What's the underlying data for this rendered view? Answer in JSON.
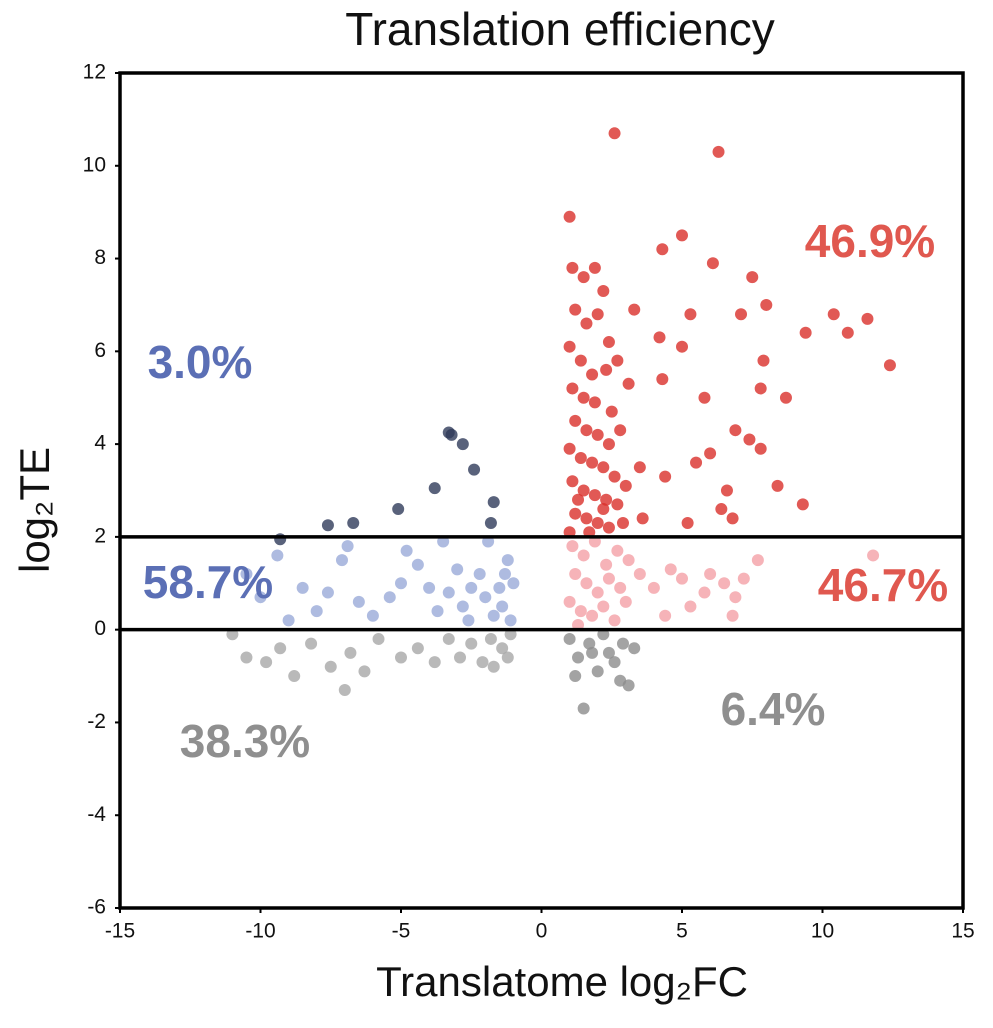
{
  "chart_data": {
    "type": "scatter",
    "title": "Translation efficiency",
    "x_label": "Translatome log₂FC",
    "y_label": "log₂TE",
    "xlim": [
      -15,
      15
    ],
    "ylim": [
      -6,
      12
    ],
    "xticks": [
      -15,
      -10,
      -5,
      0,
      5,
      10,
      15
    ],
    "yticks": [
      -6,
      -4,
      -2,
      0,
      2,
      4,
      6,
      8,
      10,
      12
    ],
    "grid": false,
    "reference_lines": [
      2,
      0
    ],
    "annotations": [
      {
        "text": "46.9%",
        "color": "#e0584f"
      },
      {
        "text": "3.0%",
        "color": "#5b6fb5"
      },
      {
        "text": "58.7%",
        "color": "#5b6fb5"
      },
      {
        "text": "46.7%",
        "color": "#e0584f"
      },
      {
        "text": "38.3%",
        "color": "#8f8f8f"
      },
      {
        "text": "6.4%",
        "color": "#8f8f8f"
      }
    ],
    "series": [
      {
        "color": "#a8a8a8",
        "x": [
          -1.1,
          -1.4,
          -1.8,
          -2.1,
          -2.5,
          -2.9,
          -3.3,
          -3.8,
          -4.4,
          -5.0,
          -5.8,
          -6.3,
          -6.8,
          -7.0,
          -7.5,
          -8.2,
          -8.8,
          -9.3,
          -9.8,
          -10.5,
          -11.0,
          -1.7,
          -1.2
        ],
        "y": [
          -0.1,
          -0.4,
          -0.2,
          -0.7,
          -0.3,
          -0.6,
          -0.2,
          -0.7,
          -0.4,
          -0.6,
          -0.2,
          -0.9,
          -0.5,
          -1.3,
          -0.8,
          -0.3,
          -1.0,
          -0.4,
          -0.7,
          -0.6,
          -0.1,
          -0.8,
          -0.6
        ]
      },
      {
        "color": "#8c8c8c",
        "x": [
          1.0,
          1.3,
          1.7,
          2.0,
          2.4,
          2.8,
          3.1,
          1.2,
          1.5,
          2.2,
          2.6,
          3.3,
          1.8,
          2.9
        ],
        "y": [
          -0.2,
          -0.6,
          -0.3,
          -0.9,
          -0.5,
          -1.1,
          -1.2,
          -1.0,
          -1.7,
          -0.1,
          -0.7,
          -0.4,
          -0.5,
          -0.3
        ]
      },
      {
        "color": "#9aaad8",
        "x": [
          -1.2,
          -1.3,
          -1.5,
          -1.4,
          -1.7,
          -2.0,
          -2.2,
          -2.5,
          -2.8,
          -3.0,
          -3.3,
          -3.7,
          -4.0,
          -4.4,
          -5.0,
          -5.4,
          -6.0,
          -6.5,
          -7.1,
          -7.6,
          -8.0,
          -8.5,
          -9.0,
          -9.4,
          -10.0,
          -10.5,
          -6.9,
          -4.8,
          -1.1,
          -1.9,
          -3.5,
          -2.6,
          -1.0
        ],
        "y": [
          1.5,
          1.2,
          0.9,
          0.5,
          0.3,
          0.7,
          1.2,
          0.9,
          0.5,
          1.3,
          0.8,
          0.4,
          0.9,
          1.4,
          1.0,
          0.7,
          0.3,
          0.6,
          1.5,
          0.8,
          0.4,
          0.9,
          0.2,
          1.6,
          0.7,
          1.2,
          1.8,
          1.7,
          0.2,
          1.9,
          1.9,
          0.2,
          1.0
        ]
      },
      {
        "color": "#f4a0a6",
        "x": [
          1.1,
          1.5,
          1.9,
          2.3,
          2.7,
          3.1,
          3.5,
          1.2,
          1.6,
          2.0,
          2.4,
          2.8,
          1.0,
          1.4,
          1.8,
          2.2,
          2.6,
          3.0,
          1.3,
          4.0,
          4.6,
          5.0,
          5.8,
          6.0,
          6.5,
          6.9,
          7.2,
          7.7,
          11.8,
          5.3,
          6.8,
          4.4
        ],
        "y": [
          1.8,
          1.6,
          1.9,
          1.4,
          1.7,
          1.5,
          1.2,
          1.2,
          1.0,
          0.8,
          1.1,
          0.9,
          0.6,
          0.4,
          0.3,
          0.5,
          0.2,
          0.6,
          0.1,
          0.9,
          1.3,
          1.1,
          0.8,
          1.2,
          1.0,
          0.7,
          1.1,
          1.5,
          1.6,
          0.5,
          0.3,
          0.3
        ]
      },
      {
        "color": "#2f3b5a",
        "x": [
          -9.3,
          -7.6,
          -6.7,
          -5.1,
          -3.8,
          -3.3,
          -3.2,
          -2.8,
          -2.4,
          -1.7,
          -1.8
        ],
        "y": [
          1.95,
          2.25,
          2.3,
          2.6,
          3.05,
          4.25,
          4.2,
          4.0,
          3.45,
          2.75,
          2.3
        ]
      },
      {
        "color": "#d9302a",
        "x": [
          2.6,
          6.3,
          1.0,
          5.0,
          4.3,
          6.1,
          7.5,
          8.0,
          3.3,
          5.3,
          7.1,
          9.4,
          10.4,
          11.6,
          10.9,
          12.4,
          4.2,
          5.0,
          7.9,
          4.3,
          3.1,
          7.8,
          5.8,
          8.7,
          6.9,
          7.4,
          7.8,
          6.0,
          5.5,
          3.5,
          4.4,
          6.6,
          8.4,
          9.3,
          6.4,
          3.6,
          5.2,
          6.8,
          1.1,
          1.5,
          1.9,
          2.2,
          1.2,
          1.6,
          2.0,
          2.4,
          1.0,
          1.4,
          1.8,
          2.3,
          2.7,
          1.1,
          1.5,
          1.9,
          2.5,
          1.2,
          1.6,
          2.0,
          2.4,
          2.8,
          1.0,
          1.4,
          1.8,
          2.2,
          2.6,
          3.0,
          1.1,
          1.5,
          1.9,
          2.3,
          2.7,
          1.2,
          1.6,
          2.0,
          2.4,
          2.9,
          1.0,
          1.7,
          2.2,
          1.3
        ],
        "y": [
          10.7,
          10.3,
          8.9,
          8.5,
          8.2,
          7.9,
          7.6,
          7.0,
          6.9,
          6.8,
          6.8,
          6.4,
          6.8,
          6.7,
          6.4,
          5.7,
          6.3,
          6.1,
          5.8,
          5.4,
          5.3,
          5.2,
          5.0,
          5.0,
          4.3,
          4.1,
          3.9,
          3.8,
          3.6,
          3.5,
          3.3,
          3.0,
          3.1,
          2.7,
          2.6,
          2.4,
          2.3,
          2.4,
          7.8,
          7.6,
          7.8,
          7.3,
          6.9,
          6.6,
          6.8,
          6.2,
          6.1,
          5.8,
          5.5,
          5.6,
          5.8,
          5.2,
          5.0,
          4.9,
          4.7,
          4.5,
          4.3,
          4.2,
          4.0,
          4.3,
          3.9,
          3.7,
          3.6,
          3.5,
          3.3,
          3.1,
          3.2,
          3.0,
          2.9,
          2.8,
          2.7,
          2.5,
          2.4,
          2.3,
          2.2,
          2.3,
          2.1,
          2.1,
          2.6,
          2.8
        ]
      }
    ]
  }
}
